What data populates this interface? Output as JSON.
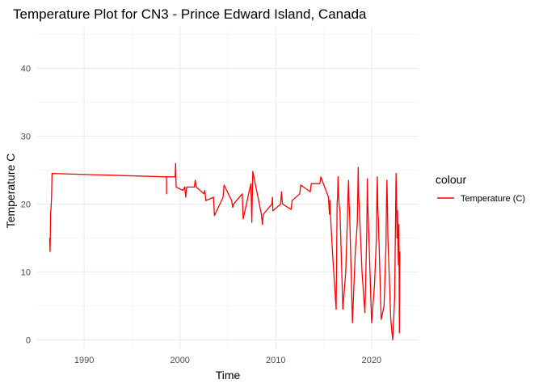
{
  "chart_data": {
    "type": "line",
    "title": "Temperature Plot for CN3 - Prince Edward Island, Canada",
    "xlabel": "Time",
    "ylabel": "Temperature C",
    "xlim": [
      1985.1,
      2024.9
    ],
    "ylim": [
      -1.5,
      46
    ],
    "x_ticks": [
      1990,
      2000,
      2010,
      2020
    ],
    "x_tick_labels": [
      "1990",
      "2000",
      "2010",
      "2020"
    ],
    "y_ticks": [
      0,
      10,
      20,
      30,
      40
    ],
    "y_tick_labels": [
      "0",
      "10",
      "20",
      "30",
      "40"
    ],
    "grid": true,
    "legend": {
      "title": "colour",
      "position": "right",
      "entries": [
        {
          "label": "Temperature (C)",
          "color": "#ff0000"
        }
      ]
    },
    "series": [
      {
        "name": "Temperature (C)",
        "color": "#ff0000",
        "points": [
          [
            1986.4,
            15.0
          ],
          [
            1986.45,
            13.0
          ],
          [
            1986.5,
            18.5
          ],
          [
            1986.55,
            19.5
          ],
          [
            1986.6,
            21.0
          ],
          [
            1986.65,
            24.5
          ],
          [
            1998.6,
            24.0
          ],
          [
            1998.6,
            21.5
          ],
          [
            1998.6,
            24.0
          ],
          [
            1999.5,
            24.0
          ],
          [
            1999.55,
            26.0
          ],
          [
            1999.6,
            22.5
          ],
          [
            2000.3,
            22.0
          ],
          [
            2000.5,
            22.5
          ],
          [
            2000.6,
            21.0
          ],
          [
            2000.7,
            22.5
          ],
          [
            2001.5,
            22.5
          ],
          [
            2001.6,
            23.5
          ],
          [
            2001.7,
            22.5
          ],
          [
            2002.5,
            21.5
          ],
          [
            2002.6,
            22.0
          ],
          [
            2002.7,
            20.5
          ],
          [
            2003.5,
            21.0
          ],
          [
            2003.6,
            18.3
          ],
          [
            2004.5,
            21.0
          ],
          [
            2004.6,
            22.8
          ],
          [
            2005.4,
            20.5
          ],
          [
            2005.5,
            19.5
          ],
          [
            2005.6,
            20.0
          ],
          [
            2006.5,
            21.5
          ],
          [
            2006.6,
            17.8
          ],
          [
            2007.4,
            23.0
          ],
          [
            2007.5,
            17.3
          ],
          [
            2007.6,
            24.8
          ],
          [
            2008.5,
            18.5
          ],
          [
            2008.6,
            17.0
          ],
          [
            2008.7,
            18.5
          ],
          [
            2009.6,
            20.0
          ],
          [
            2009.65,
            21.0
          ],
          [
            2009.7,
            19.0
          ],
          [
            2010.5,
            20.0
          ],
          [
            2010.6,
            21.8
          ],
          [
            2010.7,
            20.0
          ],
          [
            2011.6,
            19.2
          ],
          [
            2011.7,
            20.5
          ],
          [
            2012.5,
            21.5
          ],
          [
            2012.6,
            22.8
          ],
          [
            2013.6,
            21.8
          ],
          [
            2013.7,
            23.0
          ],
          [
            2014.6,
            23.0
          ],
          [
            2014.7,
            24.0
          ],
          [
            2015.5,
            21.0
          ],
          [
            2015.6,
            18.5
          ],
          [
            2015.65,
            20.5
          ],
          [
            2015.7,
            18.5
          ],
          [
            2016.0,
            11.0
          ],
          [
            2016.3,
            4.5
          ],
          [
            2016.4,
            20.0
          ],
          [
            2016.45,
            21.0
          ],
          [
            2016.5,
            24.0
          ],
          [
            2016.6,
            20.0
          ],
          [
            2016.7,
            19.0
          ],
          [
            2017.0,
            4.5
          ],
          [
            2017.3,
            10.0
          ],
          [
            2017.5,
            19.0
          ],
          [
            2017.55,
            22.0
          ],
          [
            2017.6,
            23.5
          ],
          [
            2017.65,
            20.0
          ],
          [
            2017.7,
            19.0
          ],
          [
            2018.0,
            2.5
          ],
          [
            2018.3,
            13.0
          ],
          [
            2018.5,
            17.0
          ],
          [
            2018.55,
            21.0
          ],
          [
            2018.6,
            25.4
          ],
          [
            2018.65,
            21.0
          ],
          [
            2018.7,
            20.0
          ],
          [
            2019.0,
            10.0
          ],
          [
            2019.3,
            4.0
          ],
          [
            2019.5,
            16.0
          ],
          [
            2019.55,
            23.7
          ],
          [
            2019.6,
            20.0
          ],
          [
            2019.7,
            16.0
          ],
          [
            2020.0,
            2.5
          ],
          [
            2020.3,
            8.0
          ],
          [
            2020.5,
            15.0
          ],
          [
            2020.55,
            21.5
          ],
          [
            2020.6,
            24.0
          ],
          [
            2020.65,
            19.0
          ],
          [
            2020.7,
            18.0
          ],
          [
            2021.0,
            3.0
          ],
          [
            2021.3,
            5.0
          ],
          [
            2021.5,
            14.0
          ],
          [
            2021.55,
            20.0
          ],
          [
            2021.6,
            23.5
          ],
          [
            2021.65,
            20.0
          ],
          [
            2021.7,
            15.0
          ],
          [
            2022.0,
            3.0
          ],
          [
            2022.2,
            0.0
          ],
          [
            2022.4,
            6.0
          ],
          [
            2022.5,
            18.0
          ],
          [
            2022.55,
            24.5
          ],
          [
            2022.6,
            21.0
          ],
          [
            2022.65,
            15.0
          ],
          [
            2022.7,
            19.0
          ],
          [
            2022.75,
            14.0
          ],
          [
            2022.8,
            11.0
          ],
          [
            2022.85,
            17.0
          ],
          [
            2022.9,
            1.0
          ],
          [
            2022.95,
            13.0
          ]
        ]
      }
    ]
  }
}
